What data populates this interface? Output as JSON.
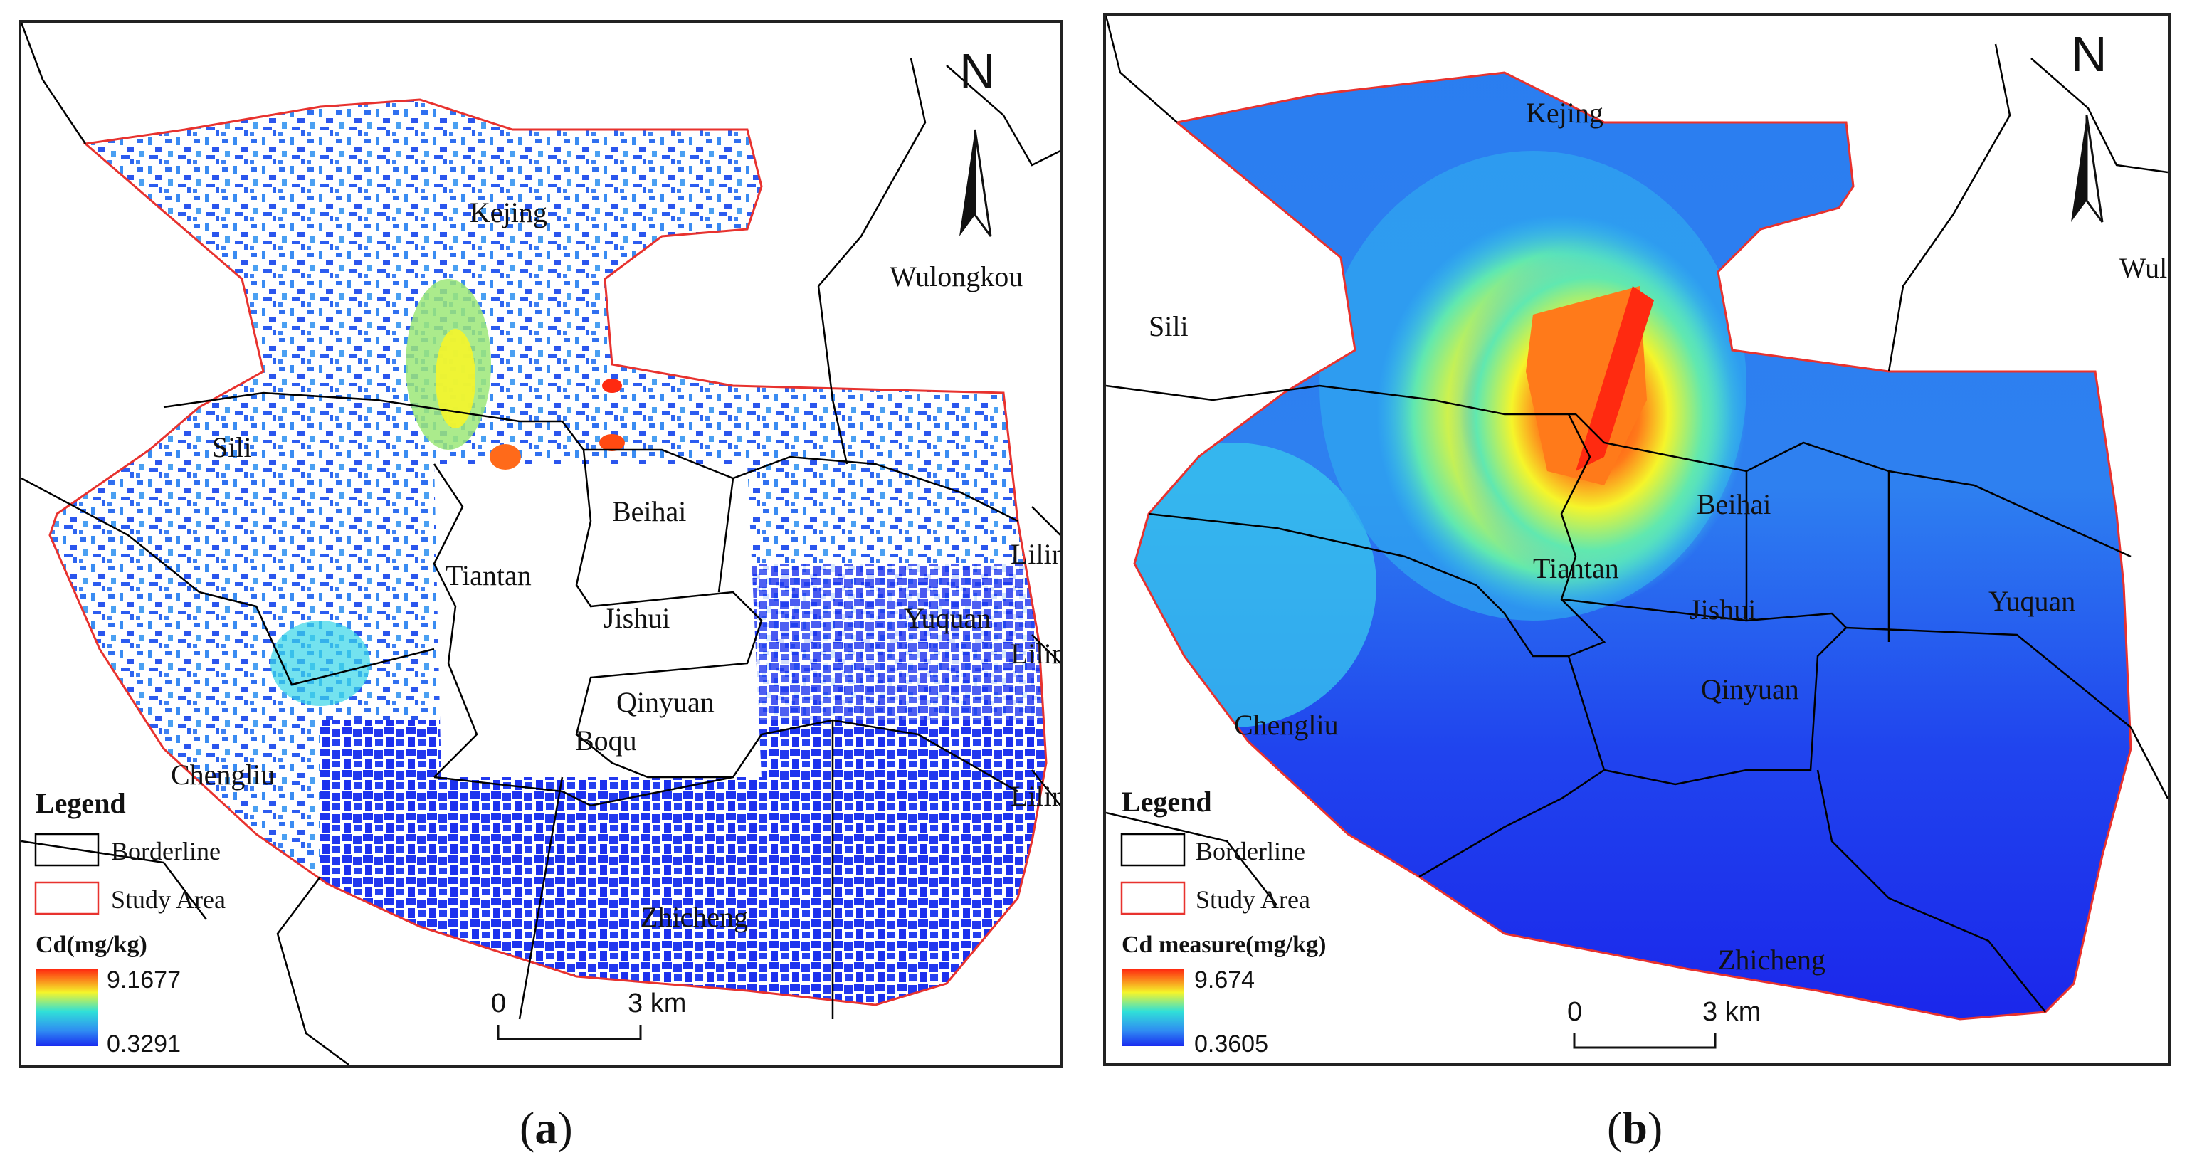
{
  "maps": [
    {
      "id": "a",
      "caption_open": "(",
      "caption_letter": "a",
      "caption_close": ")",
      "north": "N",
      "labels": {
        "kejing": "Kejing",
        "wulongkou": "Wulongkou",
        "sili": "Sili",
        "beihai": "Beihai",
        "tiantan": "Tiantan",
        "jishui": "Jishui",
        "yuquan": "Yuquan",
        "qinyuan": "Qinyuan",
        "boqu": "Boqu",
        "chengliu": "Chengliu",
        "zhicheng": "Zhicheng",
        "lilin1": "Lilin",
        "lilin2": "Lilin",
        "lilin3": "Lilin"
      },
      "legend": {
        "title": "Legend",
        "borderline": "Borderline",
        "study_area": "Study Area",
        "ramp_title": "Cd(mg/kg)",
        "max": "9.1677",
        "min": "0.3291"
      },
      "scale": {
        "zero": "0",
        "dist": "3 km"
      }
    },
    {
      "id": "b",
      "caption_open": "(",
      "caption_letter": "b",
      "caption_close": ")",
      "north": "N",
      "labels": {
        "kejing": "Kejing",
        "wulongkou": "Wulo",
        "sili": "Sili",
        "beihai": "Beihai",
        "tiantan": "Tiantan",
        "jishui": "Jishui",
        "yuquan": "Yuquan",
        "qinyuan": "Qinyuan",
        "chengliu": "Chengliu",
        "zhicheng": "Zhicheng"
      },
      "legend": {
        "title": "Legend",
        "borderline": "Borderline",
        "study_area": "Study Area",
        "ramp_title": "Cd measure(mg/kg)",
        "max": "9.674",
        "min": "0.3605"
      },
      "scale": {
        "zero": "0",
        "dist": "3 km"
      }
    }
  ],
  "colors": {
    "border": "#000000",
    "study_area": "#e8322e",
    "low": "#1a2cf0",
    "mid_low": "#2f8cf2",
    "mid": "#38d6e8",
    "mid_high": "#f3f52a",
    "high": "#ff4a12"
  }
}
